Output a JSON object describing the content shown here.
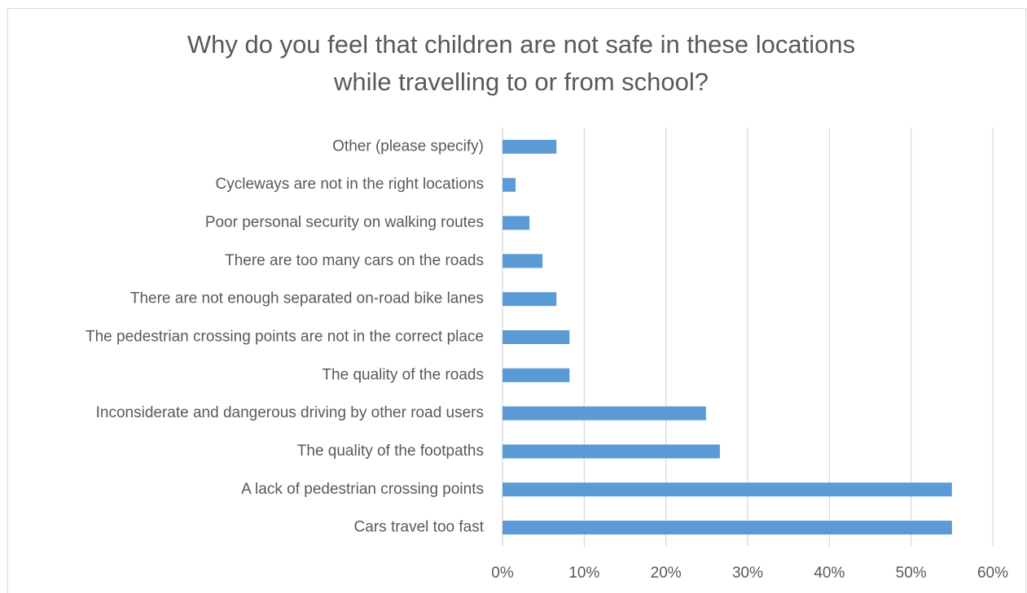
{
  "chart_data": {
    "type": "bar",
    "orientation": "horizontal",
    "title": [
      "Why do you feel that children are not safe in these locations",
      "while travelling to or from school?"
    ],
    "categories": [
      "Other (please specify)",
      "Cycleways are not in the right locations",
      "Poor personal security on walking routes",
      "There are too many cars on the roads",
      "There are not enough separated on-road bike lanes",
      "The pedestrian crossing points are not in the correct place",
      "The quality of the roads",
      "Inconsiderate and dangerous driving by other road users",
      "The quality of the footpaths",
      "A lack of pedestrian crossing points",
      "Cars travel too fast"
    ],
    "values": [
      6.6,
      1.6,
      3.3,
      4.9,
      6.6,
      8.2,
      8.2,
      24.9,
      26.6,
      55,
      55
    ],
    "color": "#5b9bd5",
    "xlim": [
      0,
      60
    ],
    "xticks": [
      {
        "value": 0,
        "label": "0%"
      },
      {
        "value": 10,
        "label": "10%"
      },
      {
        "value": 20,
        "label": "20%"
      },
      {
        "value": 30,
        "label": "30%"
      },
      {
        "value": 40,
        "label": "40%"
      },
      {
        "value": 50,
        "label": "50%"
      },
      {
        "value": 60,
        "label": "60%"
      }
    ],
    "grid": true
  }
}
